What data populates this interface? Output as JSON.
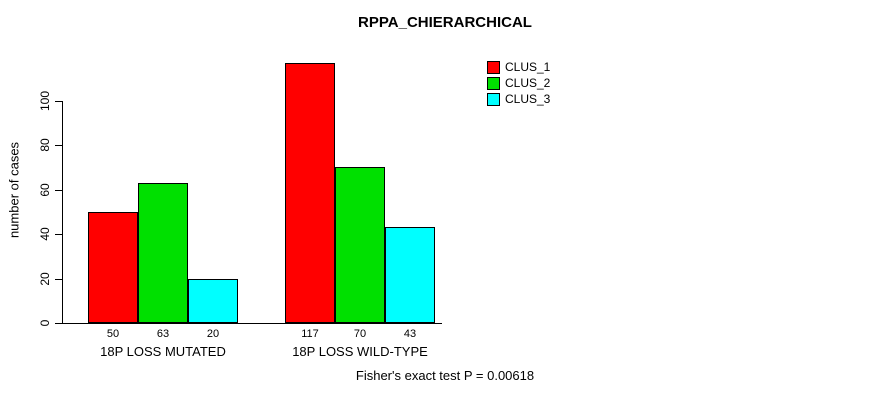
{
  "title": "RPPA_CHIERARCHICAL",
  "footer": "Fisher's exact test P = 0.00618",
  "chart_data": {
    "type": "bar",
    "categories": [
      "18P LOSS MUTATED",
      "18P LOSS WILD-TYPE"
    ],
    "series": [
      {
        "name": "CLUS_1",
        "color": "#ff0000",
        "values": [
          50,
          117
        ]
      },
      {
        "name": "CLUS_2",
        "color": "#00e000",
        "values": [
          63,
          70
        ]
      },
      {
        "name": "CLUS_3",
        "color": "#00ffff",
        "values": [
          20,
          43
        ]
      }
    ],
    "ylabel": "number of cases",
    "yticks": [
      0,
      20,
      40,
      60,
      80,
      100
    ],
    "ylim": [
      0,
      118
    ],
    "grid": false,
    "legend_position": "top-right",
    "bar_value_labels_shown": true
  }
}
